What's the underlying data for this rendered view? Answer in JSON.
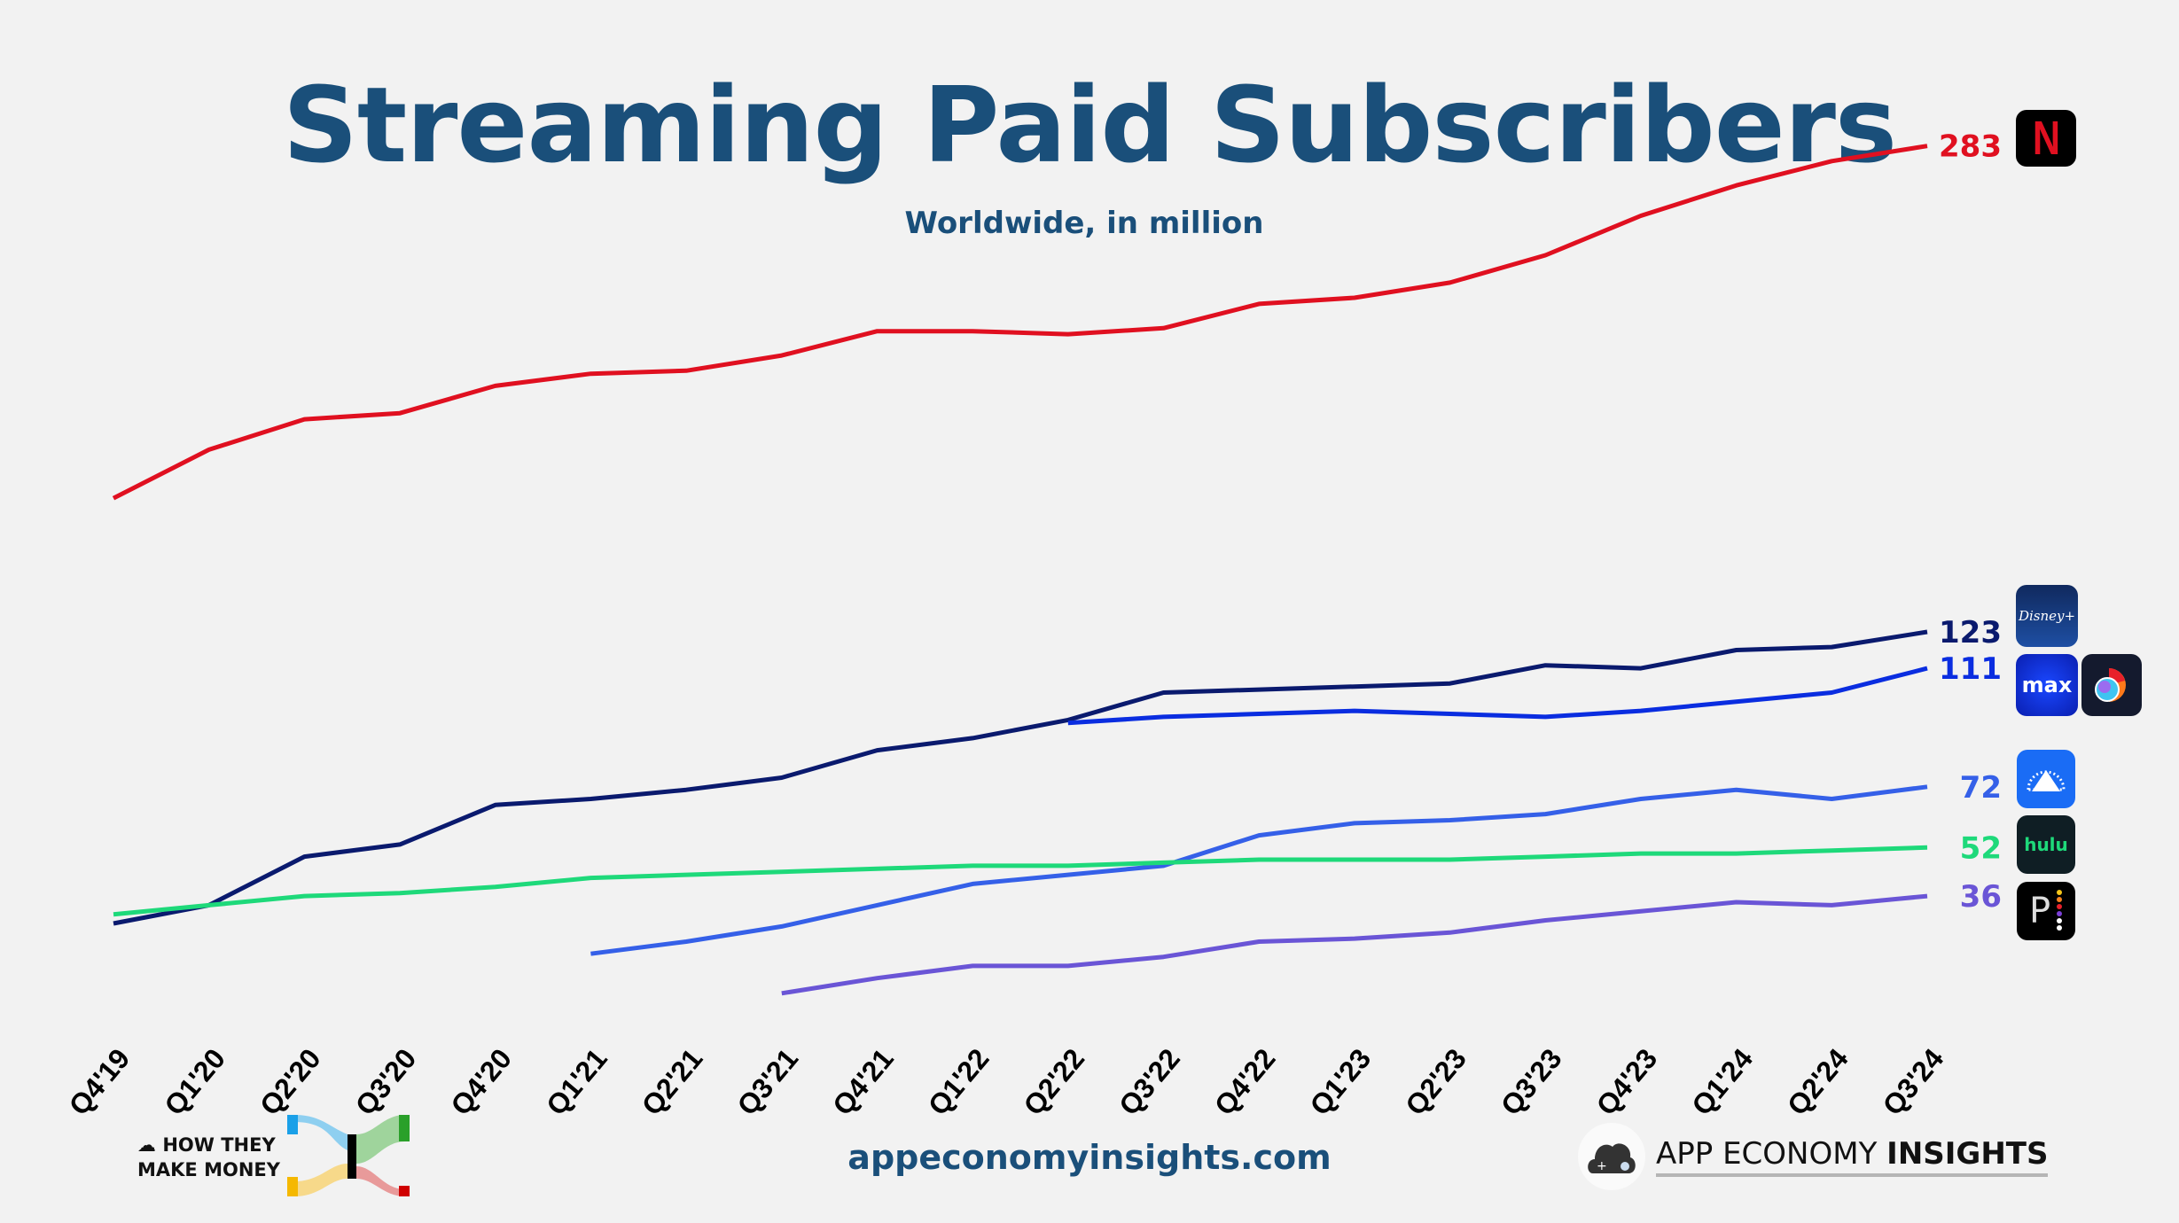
{
  "header": {
    "title": "Streaming Paid Subscribers",
    "subtitle": "Worldwide, in million"
  },
  "chart_data": {
    "type": "line",
    "title": "Streaming Paid Subscribers",
    "subtitle": "Worldwide, in million",
    "xlabel": "",
    "ylabel": "",
    "ylim": [
      0,
      300
    ],
    "grid": false,
    "legend": "end-of-line labels with app icons (right)",
    "categories": [
      "Q4'19",
      "Q1'20",
      "Q2'20",
      "Q3'20",
      "Q4'20",
      "Q1'21",
      "Q2'21",
      "Q3'21",
      "Q4'21",
      "Q1'22",
      "Q2'22",
      "Q3'22",
      "Q4'22",
      "Q1'23",
      "Q2'23",
      "Q3'23",
      "Q4'23",
      "Q1'24",
      "Q2'24",
      "Q3'24"
    ],
    "series": [
      {
        "name": "Netflix",
        "color": "#e01020",
        "label": "283",
        "icon": "netflix-icon",
        "values": [
          167,
          183,
          193,
          195,
          204,
          208,
          209,
          214,
          222,
          222,
          221,
          223,
          231,
          233,
          238,
          247,
          260,
          270,
          278,
          283
        ]
      },
      {
        "name": "Disney+",
        "color": "#0a1a6e",
        "label": "123",
        "icon": "disney-plus-icon",
        "values": [
          27,
          33,
          49,
          53,
          66,
          68,
          71,
          75,
          84,
          88,
          94,
          103,
          104,
          105,
          106,
          112,
          111,
          117,
          118,
          123
        ]
      },
      {
        "name": "Max / Discovery+",
        "color": "#0a2de0",
        "label": "111",
        "icon": "max-icon",
        "values": [
          null,
          null,
          null,
          null,
          null,
          null,
          null,
          null,
          null,
          null,
          93,
          95,
          96,
          97,
          96,
          95,
          97,
          100,
          103,
          111
        ]
      },
      {
        "name": "Paramount+",
        "color": "#3560e8",
        "label": "72",
        "icon": "paramount-plus-icon",
        "values": [
          null,
          null,
          null,
          null,
          null,
          17,
          21,
          26,
          33,
          40,
          43,
          46,
          56,
          60,
          61,
          63,
          68,
          71,
          68,
          72
        ]
      },
      {
        "name": "Hulu",
        "color": "#1ed97a",
        "label": "52",
        "icon": "hulu-icon",
        "values": [
          30,
          33,
          36,
          37,
          39,
          42,
          43,
          44,
          45,
          46,
          46,
          47,
          48,
          48,
          48,
          49,
          50,
          50,
          51,
          52
        ]
      },
      {
        "name": "Peacock",
        "color": "#6a55d6",
        "label": "36",
        "icon": "peacock-icon",
        "values": [
          null,
          null,
          null,
          null,
          null,
          null,
          null,
          4,
          9,
          13,
          13,
          16,
          21,
          22,
          24,
          28,
          31,
          34,
          33,
          36
        ]
      }
    ]
  },
  "logos": {
    "netflix": "N",
    "disney": "Disney+",
    "max": "max",
    "hulu": "hulu",
    "peacock": "P"
  },
  "footer": {
    "brand_left_line1": "HOW THEY",
    "brand_left_line2": "MAKE MONEY",
    "website": "appeconomyinsights.com",
    "brand_right_regular": "APP ECONOMY ",
    "brand_right_bold": "INSIGHTS"
  }
}
